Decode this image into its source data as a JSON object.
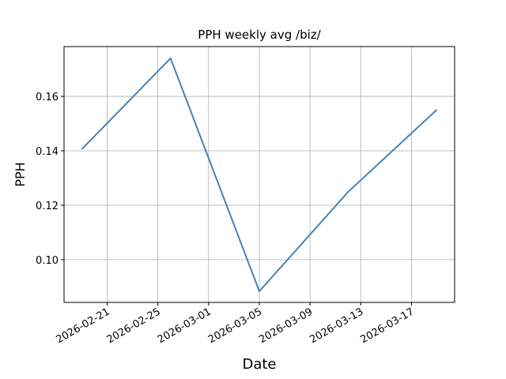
{
  "chart_data": {
    "type": "line",
    "title": "PPH weekly avg /biz/",
    "xlabel": "Date",
    "ylabel": "PPH",
    "x": [
      "2026-02-19",
      "2026-02-26",
      "2026-03-05",
      "2026-03-12",
      "2026-03-19"
    ],
    "series": [
      {
        "name": "PPH",
        "color": "#4682b4",
        "values": [
          0.1406,
          0.174,
          0.0884,
          0.1249,
          0.1551
        ]
      }
    ],
    "xlim": [
      "2026-02-17T14:24",
      "2026-03-20T09:36"
    ],
    "xticks": [
      "2026-02-21",
      "2026-02-25",
      "2026-03-01",
      "2026-03-05",
      "2026-03-09",
      "2026-03-13",
      "2026-03-17"
    ],
    "ylim": [
      0.0843,
      0.1783
    ],
    "yticks": [
      {
        "value": 0.1,
        "label": "0.10"
      },
      0.12,
      0.14,
      0.16
    ],
    "grid": true
  }
}
